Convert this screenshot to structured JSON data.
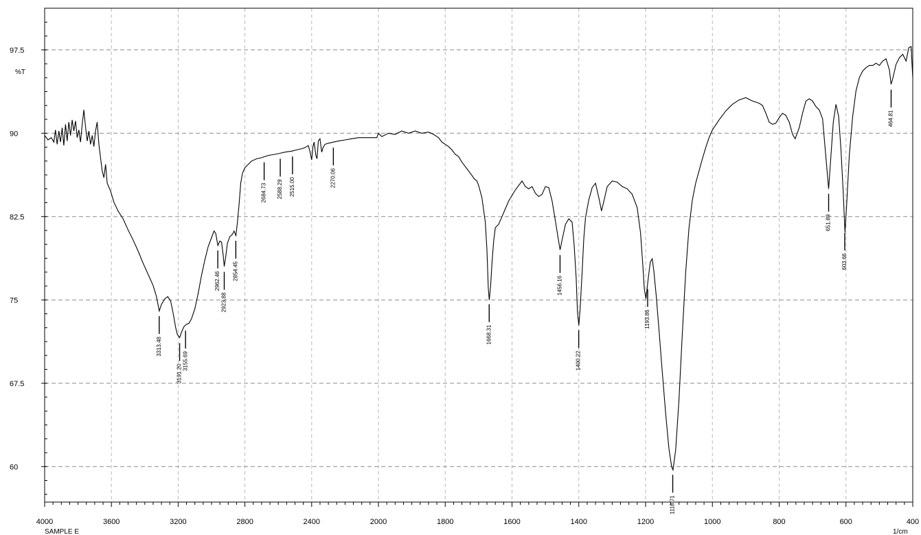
{
  "chart_data": {
    "type": "line",
    "title": "",
    "ylabel": "%T",
    "xunit": "1/cm",
    "sample": "SAMPLE E",
    "xlim": [
      4000,
      400
    ],
    "ylim": [
      52.5,
      100
    ],
    "x_ticks": [
      4000,
      3600,
      3200,
      2800,
      2400,
      2000,
      1800,
      1600,
      1400,
      1200,
      1000,
      800,
      600,
      400
    ],
    "y_ticks": [
      {
        "value": 97.5,
        "label": "97.5"
      },
      {
        "value": 90,
        "label": "90"
      },
      {
        "value": 82.5,
        "label": "82.5"
      },
      {
        "value": 75,
        "label": "75"
      },
      {
        "value": 67.5,
        "label": "67.5"
      },
      {
        "value": 60,
        "label": "60"
      }
    ],
    "grid": true,
    "series": [
      {
        "values": [
          [
            4000,
            89.8
          ],
          [
            3980,
            89.4
          ],
          [
            3960,
            89.6
          ],
          [
            3945,
            89.2
          ],
          [
            3935,
            90.3
          ],
          [
            3925,
            89.0
          ],
          [
            3915,
            90.2
          ],
          [
            3905,
            89.2
          ],
          [
            3895,
            90.5
          ],
          [
            3885,
            88.9
          ],
          [
            3875,
            90.8
          ],
          [
            3865,
            89.3
          ],
          [
            3855,
            91.0
          ],
          [
            3845,
            89.8
          ],
          [
            3835,
            91.2
          ],
          [
            3825,
            90.2
          ],
          [
            3815,
            91.1
          ],
          [
            3805,
            89.6
          ],
          [
            3795,
            90.3
          ],
          [
            3785,
            89.2
          ],
          [
            3775,
            90.8
          ],
          [
            3765,
            92.1
          ],
          [
            3755,
            90.6
          ],
          [
            3745,
            89.3
          ],
          [
            3735,
            90.2
          ],
          [
            3725,
            89.0
          ],
          [
            3715,
            89.8
          ],
          [
            3705,
            88.8
          ],
          [
            3695,
            90.2
          ],
          [
            3685,
            91.0
          ],
          [
            3675,
            89.0
          ],
          [
            3665,
            87.8
          ],
          [
            3655,
            86.6
          ],
          [
            3645,
            86.0
          ],
          [
            3635,
            87.2
          ],
          [
            3625,
            85.5
          ],
          [
            3605,
            84.8
          ],
          [
            3585,
            83.8
          ],
          [
            3560,
            83.0
          ],
          [
            3530,
            82.3
          ],
          [
            3500,
            81.3
          ],
          [
            3470,
            80.4
          ],
          [
            3440,
            79.4
          ],
          [
            3410,
            78.3
          ],
          [
            3380,
            77.3
          ],
          [
            3350,
            76.3
          ],
          [
            3330,
            75.3
          ],
          [
            3313,
            74.0
          ],
          [
            3300,
            74.6
          ],
          [
            3280,
            75.1
          ],
          [
            3262,
            75.3
          ],
          [
            3245,
            74.9
          ],
          [
            3230,
            73.8
          ],
          [
            3215,
            72.5
          ],
          [
            3205,
            71.9
          ],
          [
            3191,
            71.6
          ],
          [
            3180,
            72.1
          ],
          [
            3165,
            72.6
          ],
          [
            3150,
            72.8
          ],
          [
            3135,
            72.9
          ],
          [
            3120,
            73.3
          ],
          [
            3100,
            74.2
          ],
          [
            3080,
            75.6
          ],
          [
            3060,
            77.2
          ],
          [
            3040,
            78.6
          ],
          [
            3020,
            79.8
          ],
          [
            3000,
            80.6
          ],
          [
            2985,
            81.2
          ],
          [
            2975,
            81.0
          ],
          [
            2962,
            79.9
          ],
          [
            2950,
            80.3
          ],
          [
            2940,
            80.2
          ],
          [
            2930,
            79.0
          ],
          [
            2924,
            78.0
          ],
          [
            2915,
            78.9
          ],
          [
            2905,
            80.1
          ],
          [
            2890,
            80.7
          ],
          [
            2875,
            80.9
          ],
          [
            2865,
            81.2
          ],
          [
            2854,
            80.8
          ],
          [
            2845,
            82.0
          ],
          [
            2835,
            83.6
          ],
          [
            2825,
            85.5
          ],
          [
            2815,
            86.4
          ],
          [
            2800,
            86.9
          ],
          [
            2780,
            87.2
          ],
          [
            2760,
            87.5
          ],
          [
            2730,
            87.7
          ],
          [
            2700,
            87.8
          ],
          [
            2660,
            88.0
          ],
          [
            2620,
            88.1
          ],
          [
            2588,
            88.2
          ],
          [
            2560,
            88.3
          ],
          [
            2516,
            88.4
          ],
          [
            2490,
            88.5
          ],
          [
            2460,
            88.6
          ],
          [
            2440,
            88.7
          ],
          [
            2420,
            88.9
          ],
          [
            2408,
            88.2
          ],
          [
            2400,
            87.6
          ],
          [
            2392,
            88.8
          ],
          [
            2385,
            89.2
          ],
          [
            2375,
            88.0
          ],
          [
            2368,
            87.7
          ],
          [
            2360,
            89.3
          ],
          [
            2350,
            89.5
          ],
          [
            2340,
            88.3
          ],
          [
            2332,
            88.7
          ],
          [
            2320,
            89.0
          ],
          [
            2300,
            89.1
          ],
          [
            2270,
            89.2
          ],
          [
            2240,
            89.3
          ],
          [
            2200,
            89.4
          ],
          [
            2160,
            89.5
          ],
          [
            2120,
            89.6
          ],
          [
            2080,
            89.6
          ],
          [
            2040,
            89.6
          ],
          [
            2010,
            89.6
          ],
          [
            2000,
            90.0
          ],
          [
            1990,
            89.7
          ],
          [
            1970,
            90.0
          ],
          [
            1950,
            89.9
          ],
          [
            1930,
            90.2
          ],
          [
            1910,
            90.0
          ],
          [
            1890,
            90.2
          ],
          [
            1870,
            90.0
          ],
          [
            1850,
            90.1
          ],
          [
            1835,
            89.9
          ],
          [
            1820,
            89.6
          ],
          [
            1810,
            89.2
          ],
          [
            1800,
            89.0
          ],
          [
            1790,
            88.8
          ],
          [
            1780,
            88.5
          ],
          [
            1770,
            88.1
          ],
          [
            1760,
            87.9
          ],
          [
            1750,
            87.4
          ],
          [
            1740,
            87.0
          ],
          [
            1730,
            86.6
          ],
          [
            1720,
            86.2
          ],
          [
            1713,
            85.9
          ],
          [
            1705,
            85.7
          ],
          [
            1700,
            85.3
          ],
          [
            1690,
            84.2
          ],
          [
            1680,
            82.0
          ],
          [
            1675,
            79.5
          ],
          [
            1671,
            76.0
          ],
          [
            1668,
            75.0
          ],
          [
            1664,
            76.3
          ],
          [
            1660,
            78.3
          ],
          [
            1655,
            80.3
          ],
          [
            1650,
            81.5
          ],
          [
            1640,
            81.8
          ],
          [
            1630,
            82.5
          ],
          [
            1620,
            83.2
          ],
          [
            1610,
            83.9
          ],
          [
            1600,
            84.4
          ],
          [
            1590,
            84.9
          ],
          [
            1580,
            85.3
          ],
          [
            1570,
            85.7
          ],
          [
            1560,
            85.2
          ],
          [
            1550,
            85.0
          ],
          [
            1540,
            85.2
          ],
          [
            1530,
            84.6
          ],
          [
            1520,
            84.3
          ],
          [
            1510,
            84.5
          ],
          [
            1500,
            85.2
          ],
          [
            1490,
            85.1
          ],
          [
            1480,
            83.9
          ],
          [
            1470,
            82.1
          ],
          [
            1460,
            80.2
          ],
          [
            1456,
            79.5
          ],
          [
            1450,
            80.4
          ],
          [
            1440,
            81.8
          ],
          [
            1430,
            82.3
          ],
          [
            1420,
            82.0
          ],
          [
            1414,
            80.0
          ],
          [
            1408,
            77.0
          ],
          [
            1404,
            73.9
          ],
          [
            1400,
            72.7
          ],
          [
            1396,
            74.2
          ],
          [
            1390,
            77.5
          ],
          [
            1385,
            80.5
          ],
          [
            1380,
            82.4
          ],
          [
            1370,
            84.0
          ],
          [
            1360,
            85.1
          ],
          [
            1350,
            85.5
          ],
          [
            1340,
            84.2
          ],
          [
            1332,
            83.0
          ],
          [
            1324,
            84.0
          ],
          [
            1315,
            85.2
          ],
          [
            1300,
            85.7
          ],
          [
            1285,
            85.6
          ],
          [
            1270,
            85.2
          ],
          [
            1255,
            85.0
          ],
          [
            1240,
            84.5
          ],
          [
            1225,
            83.3
          ],
          [
            1215,
            81.0
          ],
          [
            1208,
            78.0
          ],
          [
            1204,
            76.0
          ],
          [
            1199,
            75.1
          ],
          [
            1193,
            76.7
          ],
          [
            1186,
            78.4
          ],
          [
            1180,
            78.7
          ],
          [
            1175,
            77.5
          ],
          [
            1168,
            75.3
          ],
          [
            1160,
            72.3
          ],
          [
            1150,
            68.5
          ],
          [
            1140,
            64.8
          ],
          [
            1130,
            61.6
          ],
          [
            1122,
            60.0
          ],
          [
            1118,
            59.7
          ],
          [
            1110,
            61.5
          ],
          [
            1100,
            66.0
          ],
          [
            1090,
            72.0
          ],
          [
            1080,
            77.5
          ],
          [
            1070,
            81.5
          ],
          [
            1060,
            84.0
          ],
          [
            1050,
            85.5
          ],
          [
            1040,
            86.6
          ],
          [
            1030,
            87.7
          ],
          [
            1020,
            88.7
          ],
          [
            1010,
            89.6
          ],
          [
            1000,
            90.3
          ],
          [
            980,
            91.2
          ],
          [
            960,
            92.0
          ],
          [
            940,
            92.6
          ],
          [
            920,
            93.0
          ],
          [
            900,
            93.2
          ],
          [
            880,
            92.9
          ],
          [
            860,
            92.7
          ],
          [
            850,
            92.5
          ],
          [
            840,
            91.8
          ],
          [
            830,
            91.0
          ],
          [
            820,
            90.8
          ],
          [
            810,
            90.9
          ],
          [
            800,
            91.4
          ],
          [
            790,
            91.8
          ],
          [
            780,
            91.6
          ],
          [
            770,
            91.0
          ],
          [
            760,
            89.9
          ],
          [
            752,
            89.5
          ],
          [
            740,
            90.5
          ],
          [
            730,
            91.8
          ],
          [
            720,
            92.9
          ],
          [
            710,
            93.1
          ],
          [
            700,
            92.9
          ],
          [
            690,
            92.4
          ],
          [
            680,
            92.1
          ],
          [
            670,
            91.3
          ],
          [
            660,
            87.8
          ],
          [
            652,
            85.0
          ],
          [
            645,
            88.0
          ],
          [
            638,
            91.0
          ],
          [
            630,
            92.6
          ],
          [
            622,
            91.5
          ],
          [
            615,
            88.5
          ],
          [
            608,
            84.5
          ],
          [
            603,
            81.1
          ],
          [
            598,
            83.5
          ],
          [
            590,
            88.0
          ],
          [
            580,
            91.5
          ],
          [
            570,
            93.8
          ],
          [
            560,
            95.0
          ],
          [
            550,
            95.6
          ],
          [
            540,
            95.9
          ],
          [
            530,
            96.1
          ],
          [
            520,
            96.1
          ],
          [
            510,
            96.3
          ],
          [
            500,
            96.1
          ],
          [
            490,
            96.5
          ],
          [
            480,
            96.7
          ],
          [
            470,
            95.7
          ],
          [
            465,
            94.4
          ],
          [
            460,
            94.9
          ],
          [
            450,
            96.2
          ],
          [
            440,
            96.8
          ],
          [
            430,
            97.1
          ],
          [
            420,
            96.5
          ],
          [
            412,
            97.7
          ],
          [
            405,
            97.8
          ],
          [
            400,
            95.0
          ]
        ]
      }
    ],
    "peaks": [
      {
        "x": 3313.48,
        "label": "3313.48"
      },
      {
        "x": 3191.2,
        "label": "3191.20"
      },
      {
        "x": 3155.69,
        "label": "3155.69"
      },
      {
        "x": 2962.46,
        "label": "2962.46"
      },
      {
        "x": 2923.88,
        "label": "2923.88"
      },
      {
        "x": 2854.45,
        "label": "2854.45"
      },
      {
        "x": 2684.73,
        "label": "2684.73"
      },
      {
        "x": 2588.29,
        "label": "2588.29"
      },
      {
        "x": 2515.0,
        "label": "2515.00"
      },
      {
        "x": 2270.06,
        "label": "2270.06"
      },
      {
        "x": 1668.31,
        "label": "1668.31"
      },
      {
        "x": 1456.16,
        "label": "1456.16"
      },
      {
        "x": 1400.22,
        "label": "1400.22"
      },
      {
        "x": 1193.86,
        "label": "1193.86"
      },
      {
        "x": 1118.71,
        "label": "1118.71"
      },
      {
        "x": 651.89,
        "label": "651.89"
      },
      {
        "x": 603.66,
        "label": "603.66"
      },
      {
        "x": 464.81,
        "label": "464.81"
      }
    ]
  }
}
